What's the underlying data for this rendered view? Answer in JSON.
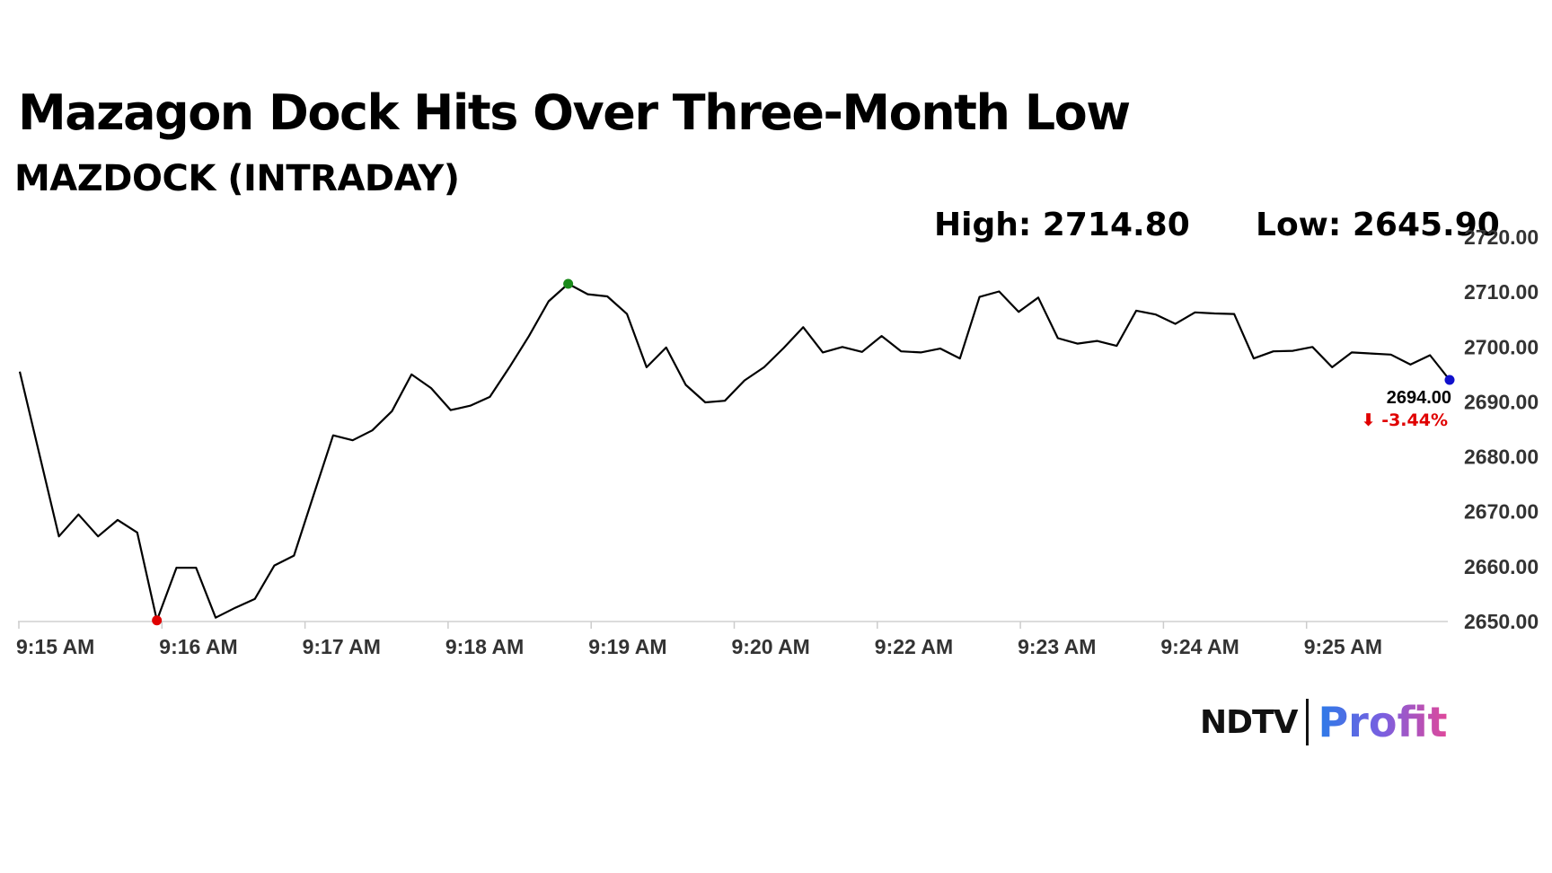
{
  "header": {
    "title": "Mazagon Dock Hits Over Three-Month Low",
    "subtitle": "MAZDOCK (INTRADAY)"
  },
  "stats": {
    "high_label": "High: 2714.80",
    "low_label": "Low: 2645.90"
  },
  "brand": {
    "ndtv": "NDTV",
    "profit": "Profit"
  },
  "chart_data": {
    "type": "line",
    "title": "Mazagon Dock Hits Over Three-Month Low",
    "subtitle": "MAZDOCK (INTRADAY)",
    "xlabel": "",
    "ylabel": "",
    "ylim": [
      2650,
      2720
    ],
    "yticks": [
      2650,
      2660,
      2670,
      2680,
      2690,
      2700,
      2710,
      2720
    ],
    "ytick_labels": [
      "2650.00",
      "2660.00",
      "2670.00",
      "2680.00",
      "2690.00",
      "2700.00",
      "2710.00",
      "2720.00"
    ],
    "xtick_labels": [
      "9:15 AM",
      "9:16 AM",
      "9:17 AM",
      "9:18 AM",
      "9:19 AM",
      "9:20 AM",
      "9:22 AM",
      "9:23 AM",
      "9:24 AM",
      "9:25 AM"
    ],
    "grid": false,
    "series": [
      {
        "color": "#000000",
        "values": [
          2695.5,
          2680.5,
          2665.5,
          2669.5,
          2665.5,
          2668.5,
          2666.2,
          2650.2,
          2659.8,
          2659.8,
          2650.7,
          2652.5,
          2654.1,
          2660.2,
          2662.0,
          2673.0,
          2683.9,
          2683.0,
          2684.8,
          2688.3,
          2695.0,
          2692.5,
          2688.5,
          2689.3,
          2690.9,
          2696.3,
          2702.0,
          2708.3,
          2711.5,
          2709.6,
          2709.2,
          2706.0,
          2696.3,
          2699.9,
          2693.1,
          2689.9,
          2690.2,
          2693.9,
          2696.3,
          2699.8,
          2703.6,
          2699.0,
          2700.0,
          2699.1,
          2702.0,
          2699.2,
          2699.0,
          2699.7,
          2697.9,
          2709.1,
          2710.1,
          2706.4,
          2709.0,
          2701.6,
          2700.6,
          2701.1,
          2700.2,
          2706.6,
          2705.9,
          2704.2,
          2706.3,
          2706.1,
          2706.0,
          2697.9,
          2699.2,
          2699.3,
          2700.0,
          2696.3,
          2699.0,
          2698.8,
          2698.6,
          2696.8,
          2698.5,
          2694.0
        ]
      }
    ],
    "markers": [
      {
        "label": "low",
        "index": 7,
        "value": 2650.2,
        "color": "#e00000"
      },
      {
        "label": "high",
        "index": 28,
        "value": 2711.5,
        "color": "#1a8a1a"
      },
      {
        "label": "last",
        "index": 73,
        "value": 2694.0,
        "color": "#1010cc"
      }
    ],
    "last_price_label": "2694.00",
    "change_label": "⬇ -3.44%",
    "change_color": "#e00000"
  }
}
